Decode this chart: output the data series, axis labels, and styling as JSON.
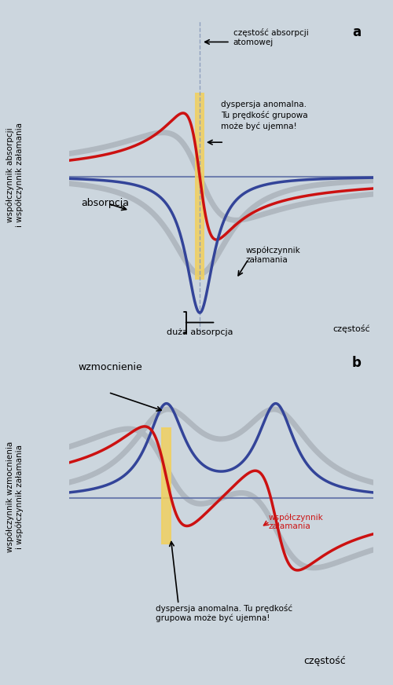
{
  "bg_outer": "#ccd6de",
  "bg_panel": "#bfcdd6",
  "ylabel_a1": "współczynnik absorpcji",
  "ylabel_a2": "i współczynnik załamania",
  "ylabel_b1": "współczynnik wzmocnienia",
  "ylabel_b2": "i współczynnik załamania",
  "text_a_ann1": "częstość absorpcji\natomowej",
  "text_a_ann2": "dyspersja anomalna.\nTu prędkość grupowa\nmoże być ujemna!",
  "text_a_ann3": "absorpcja",
  "text_a_ann4": "współczynnik\nzałamania",
  "text_a_ann5": "duża absorpcja",
  "text_b_ann1": "wzmocnienie",
  "text_b_ann2": "współczynnik\nzałamania",
  "text_b_ann3": "dyspersja anomalna. Tu prędkość\ngrupowa może być ujemna!",
  "red_color": "#cc1111",
  "blue_color": "#334499",
  "gray_color": "#aaaaaa",
  "yellow_color": "#f0d060",
  "shadow_color": "#b0b8c0"
}
